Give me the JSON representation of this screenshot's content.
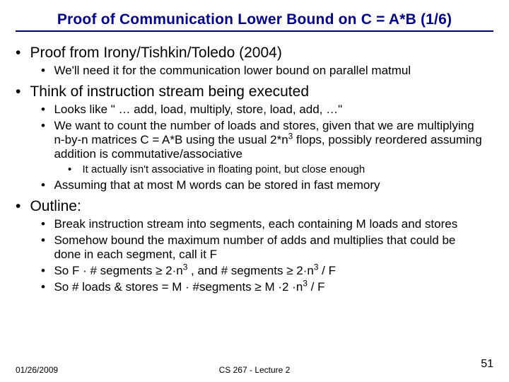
{
  "title": "Proof of Communication Lower Bound on C = A*B (1/6)",
  "b1": "Proof from Irony/Tishkin/Toledo (2004)",
  "b1a": "We'll need it for the communication lower bound on parallel matmul",
  "b2": "Think of instruction stream being executed",
  "b2a": "Looks like \" …  add,  load, multiply, store, load, add, …\"",
  "b2b_pre": "We want to count the number of loads and stores, given that we are multiplying n-by-n matrices C = A*B using the usual 2*n",
  "b2b_sup": "3",
  "b2b_post": " flops, possibly reordered assuming addition is commutative/associative",
  "b2b_i": "It actually isn't associative in floating point, but close enough",
  "b2c": "Assuming that at most M words can be stored in fast memory",
  "b3": "Outline:",
  "b3a": "Break instruction stream into segments, each containing M loads and stores",
  "b3b": "Somehow bound the maximum number of adds and multiplies that could be done in each segment, call it F",
  "b3c_pre": "So     F · # segments ≥ 2·n",
  "b3c_sup": "3",
  "b3c_mid": " ,   and     # segments ≥ 2·n",
  "b3c_sup2": "3",
  "b3c_post": " / F",
  "b3d_pre": "So    # loads & stores = M · #segments  ≥ M ·2 ·n",
  "b3d_sup": "3",
  "b3d_post": " / F",
  "footer_date": "01/26/2009",
  "footer_center": "CS 267 - Lecture 2",
  "footer_page": "51",
  "colors": {
    "title": "#000080",
    "text": "#000000",
    "bg": "#ffffff"
  }
}
